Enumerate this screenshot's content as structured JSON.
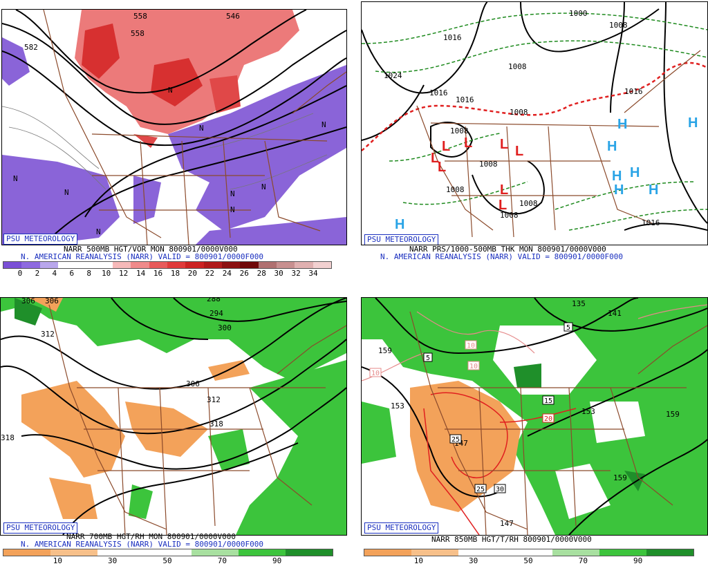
{
  "credit": "PSU METEOROLOGY",
  "panels": {
    "tl": {
      "line1": "NARR 500MB HGT/VOR MON 800901/0000V000",
      "line2": "N. AMERICAN REANALYSIS (NARR) VALID = 800901/0000F000",
      "scale_ticks": [
        "0",
        "2",
        "4",
        "6",
        "8",
        "10",
        "12",
        "14",
        "16",
        "18",
        "20",
        "22",
        "24",
        "26",
        "28",
        "30",
        "32",
        "34"
      ],
      "scale_colors": [
        "#7a4fd6",
        "#8e6ae0",
        "#b9a7ec",
        "#ffffff",
        "#ffffff",
        "#ffffff",
        "#f6b9b9",
        "#f08a8a",
        "#e85a5a",
        "#e03a3a",
        "#cc2222",
        "#b01a1a",
        "#8c1010",
        "#700808",
        "#b07070",
        "#c89090",
        "#e0b0b0",
        "#f2d0d0"
      ],
      "labels": [
        "582",
        "546",
        "558",
        "558",
        "N",
        "N",
        "N",
        "N",
        "N",
        "N",
        "N",
        "N",
        "N"
      ]
    },
    "tr": {
      "line1": "NARR PRS/1000-500MB THK MON 800901/0000V000",
      "line2": "N. AMERICAN REANALYSIS (NARR) VALID = 800901/0000F000",
      "labels": [
        "1000",
        "1008",
        "1016",
        "1024",
        "1016",
        "1016",
        "1008",
        "1008",
        "1008",
        "1008",
        "1008",
        "1016",
        "1008",
        "1016",
        "1008"
      ],
      "highs": [
        "H",
        "H",
        "H",
        "H",
        "H",
        "H",
        "H",
        "H"
      ],
      "lows": [
        "L",
        "L",
        "L",
        "L",
        "L",
        "L",
        "L",
        "L"
      ]
    },
    "bl": {
      "line1": "NARR 700MB HGT/RH MON 800901/0000V000",
      "line2": "N. AMERICAN REANALYSIS (NARR) VALID = 800901/0000F000",
      "scale_ticks": [
        "10",
        "30",
        "50",
        "70",
        "90"
      ],
      "scale_colors": [
        "#f3a25a",
        "#f7c08a",
        "#ffffff",
        "#ffffff",
        "#a8e0a0",
        "#3cc43c",
        "#1f8f2a"
      ],
      "labels": [
        "306",
        "306",
        "312",
        "288",
        "294",
        "300",
        "306",
        "312",
        "318",
        "318"
      ]
    },
    "br": {
      "line1": "NARR 850MB HGT/T/RH 800901/0000V000",
      "scale_ticks": [
        "10",
        "30",
        "50",
        "70",
        "90"
      ],
      "scale_colors": [
        "#f3a25a",
        "#f7c08a",
        "#ffffff",
        "#ffffff",
        "#a8e0a0",
        "#3cc43c",
        "#1f8f2a"
      ],
      "labels": [
        "135",
        "141",
        "159",
        "153",
        "147",
        "153",
        "159",
        "159",
        "147"
      ],
      "temps": [
        "5",
        "10",
        "10",
        "10",
        "5",
        "15",
        "20",
        "25",
        "25",
        "30"
      ]
    }
  }
}
